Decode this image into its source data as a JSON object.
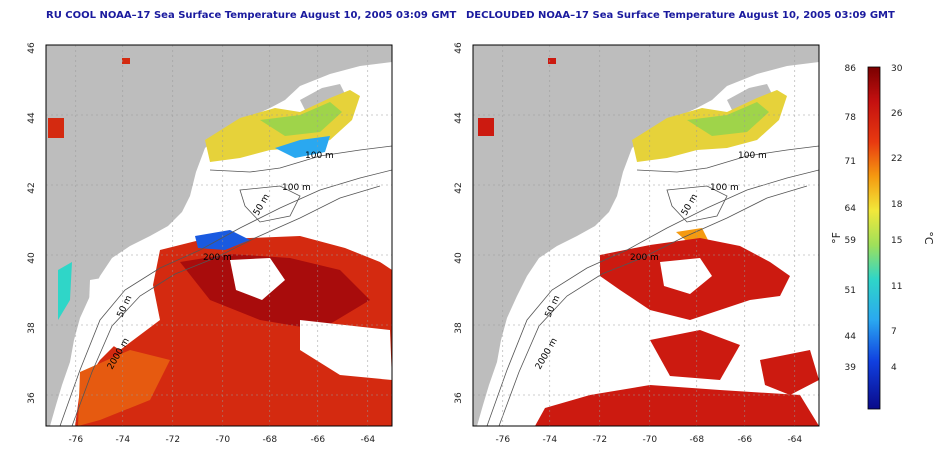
{
  "panels": [
    {
      "title": "RU COOL NOAA–17 Sea Surface Temperature August 10, 2005 03:09 GMT",
      "contours": [
        "100 m",
        "100 m",
        "50 m",
        "200 m",
        "50 m",
        "2000 m"
      ]
    },
    {
      "title": "DECLOUDED NOAA–17 Sea Surface Temperature August 10, 2005 03:09 GMT",
      "contours": [
        "100 m",
        "100 m",
        "50 m",
        "200 m",
        "50 m",
        "2000 m"
      ]
    }
  ],
  "axes": {
    "x_ticks": [
      "-76",
      "-74",
      "-72",
      "-70",
      "-68",
      "-66",
      "-64"
    ],
    "y_ticks": [
      "46",
      "44",
      "42",
      "40",
      "38",
      "36"
    ]
  },
  "colorbar": {
    "fahrenheit_label": "°F",
    "celsius_label": "°C",
    "fahrenheit_ticks": [
      "86",
      "78",
      "71",
      "64",
      "59",
      "51",
      "44",
      "39"
    ],
    "celsius_ticks": [
      "30",
      "26",
      "22",
      "18",
      "15",
      "11",
      "7",
      "4"
    ]
  },
  "colors": {
    "land": "#bdbdbd",
    "ocean_cloud": "#ffffff",
    "title": "#1a1a9e",
    "contour": "#555555"
  }
}
